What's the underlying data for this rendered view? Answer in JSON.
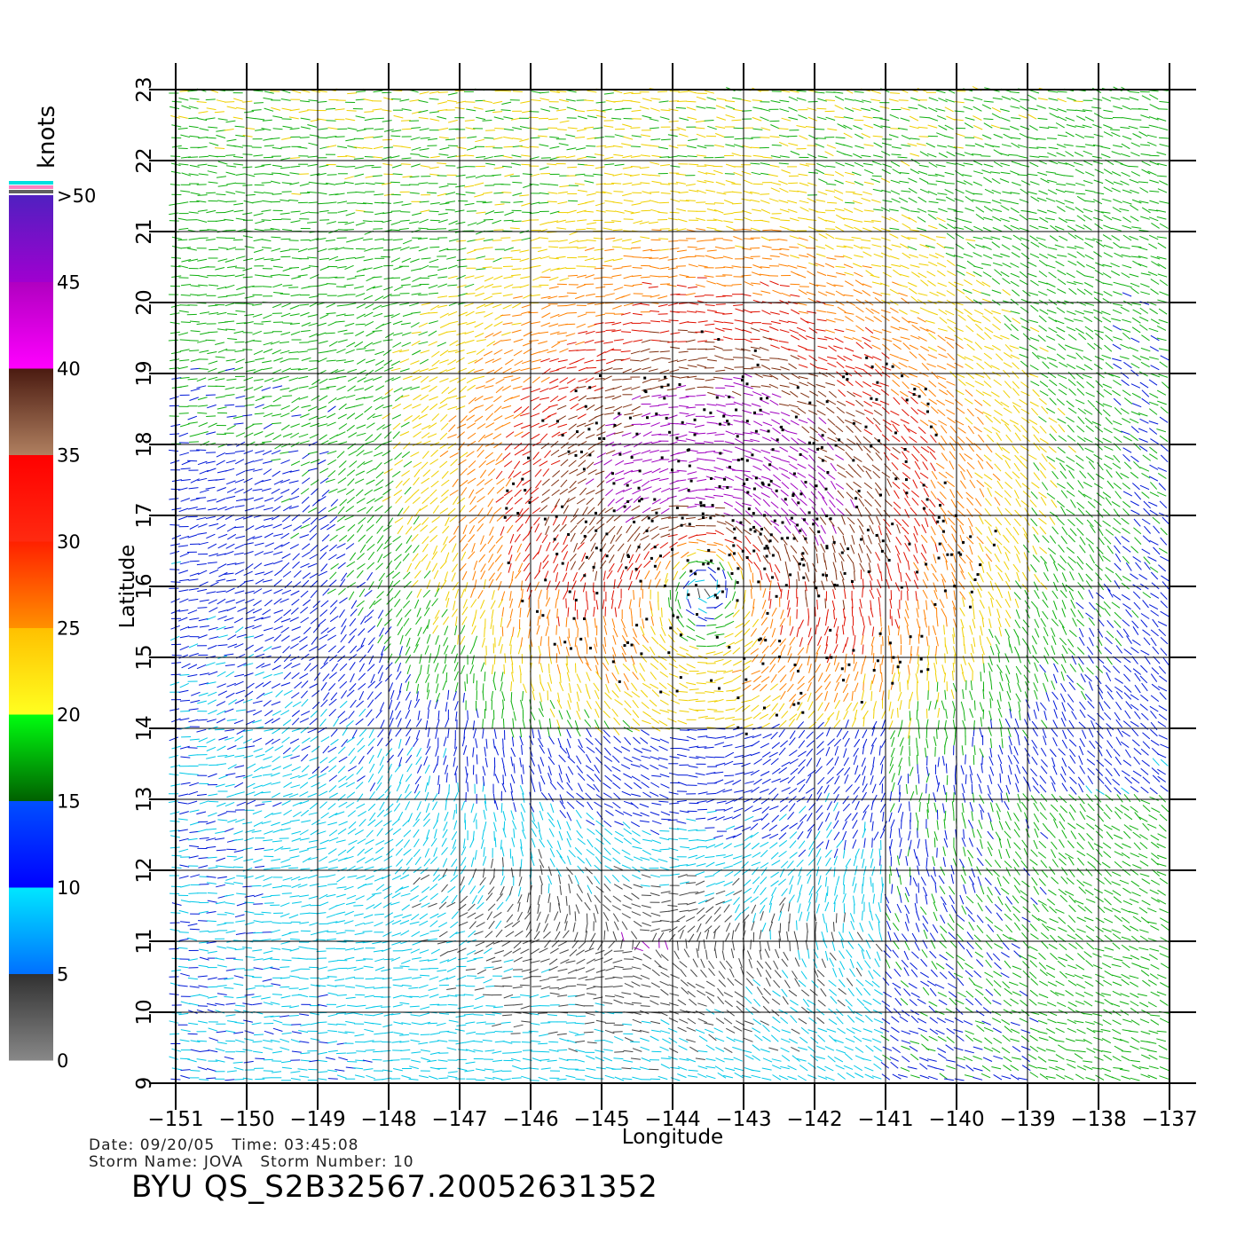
{
  "header": {
    "date_label": "Date:",
    "date": "09/20/05",
    "time_label": "Time:",
    "time": "03:45:08",
    "storm_name_label": "Storm Name:",
    "storm_name": "JOVA",
    "storm_number_label": "Storm Number:",
    "storm_number": "10",
    "product_id": "BYU QS_S2B32567.20052631352"
  },
  "colorbar": {
    "unit_label": "knots",
    "tick_labels": [
      "0",
      "5",
      "10",
      "15",
      "20",
      "25",
      "30",
      "35",
      "40",
      "45",
      ">50"
    ],
    "bands": [
      {
        "from": 0,
        "to": 5,
        "top": "#303030",
        "bottom": "#888888"
      },
      {
        "from": 5,
        "to": 10,
        "top": "#00e8ff",
        "bottom": "#0070ff"
      },
      {
        "from": 10,
        "to": 15,
        "top": "#0050ff",
        "bottom": "#0000ff"
      },
      {
        "from": 15,
        "to": 20,
        "top": "#00ff10",
        "bottom": "#006000"
      },
      {
        "from": 20,
        "to": 25,
        "top": "#ffc000",
        "bottom": "#ffff20"
      },
      {
        "from": 25,
        "to": 30,
        "top": "#ff2000",
        "bottom": "#ff9000"
      },
      {
        "from": 30,
        "to": 35,
        "top": "#ff0000",
        "bottom": "#ff2a10"
      },
      {
        "from": 35,
        "to": 40,
        "top": "#4a1a10",
        "bottom": "#b08060"
      },
      {
        "from": 40,
        "to": 45,
        "top": "#b000c0",
        "bottom": "#ff00ff"
      },
      {
        "from": 45,
        "to": 50,
        "top": "#5020c0",
        "bottom": "#a000d0"
      }
    ],
    "top_cap_colors": [
      "#00e0e0",
      "#ff80c0",
      "#606060"
    ]
  },
  "chart_data": {
    "type": "wind-vector-field",
    "xlabel": "Longitude",
    "ylabel": "Latitude",
    "xlim": [
      -151,
      -137
    ],
    "ylim": [
      9,
      23
    ],
    "xticks": [
      -151,
      -150,
      -149,
      -148,
      -147,
      -146,
      -145,
      -144,
      -143,
      -142,
      -141,
      -140,
      -139,
      -138,
      -137
    ],
    "yticks": [
      9,
      10,
      11,
      12,
      13,
      14,
      15,
      16,
      17,
      18,
      19,
      20,
      21,
      22,
      23
    ],
    "grid": true,
    "storm_center_approx": {
      "lon": -143.5,
      "lat": 16.2
    },
    "speed_unit": "knots",
    "color_scale": [
      {
        "min": 0,
        "max": 5,
        "color": "#444444"
      },
      {
        "min": 5,
        "max": 10,
        "color": "#00c8e8"
      },
      {
        "min": 10,
        "max": 15,
        "color": "#0018d8"
      },
      {
        "min": 15,
        "max": 20,
        "color": "#10b010"
      },
      {
        "min": 20,
        "max": 25,
        "color": "#f0d000"
      },
      {
        "min": 25,
        "max": 30,
        "color": "#ff8000"
      },
      {
        "min": 30,
        "max": 35,
        "color": "#e01000"
      },
      {
        "min": 35,
        "max": 40,
        "color": "#803010"
      },
      {
        "min": 40,
        "max": 50,
        "color": "#a000c0"
      }
    ],
    "rain_flag_marker": "square"
  }
}
